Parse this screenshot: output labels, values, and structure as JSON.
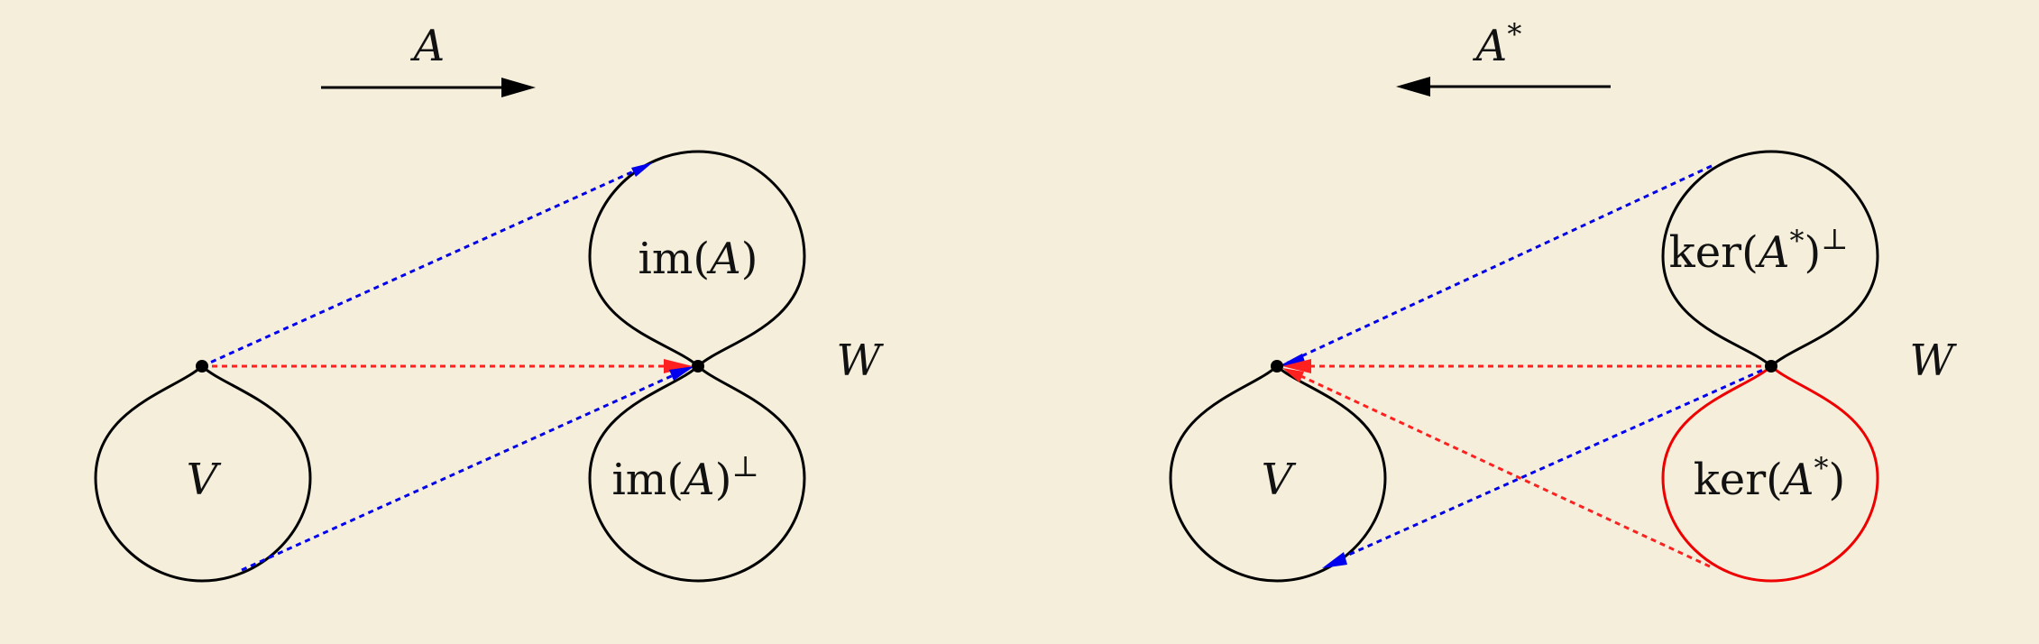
{
  "colors": {
    "background": "#f5eedb",
    "outline": "#000000",
    "blue_arrow": "#0000ee",
    "red_arrow": "#ff2020",
    "kernel_outline": "#ee0000"
  },
  "left_panel": {
    "map_label": "A",
    "map_direction": "right",
    "domain_label": "V",
    "codomain_label": "W",
    "upper_region_label": "im(",
    "upper_region_label_var": "A",
    "upper_region_label_close": ")",
    "lower_region_label": "im(",
    "lower_region_label_var": "A",
    "lower_region_label_close": ")",
    "lower_region_superscript": "⊥"
  },
  "right_panel": {
    "map_label": "A",
    "map_label_superscript": "*",
    "map_direction": "left",
    "domain_label": "V",
    "codomain_label": "W",
    "upper_region_label": "ker(",
    "upper_region_label_var": "A",
    "upper_region_label_star": "*",
    "upper_region_label_close": ")",
    "upper_region_superscript": "⊥",
    "lower_region_label": "ker(",
    "lower_region_label_var": "A",
    "lower_region_label_star": "*",
    "lower_region_label_close": ")"
  }
}
